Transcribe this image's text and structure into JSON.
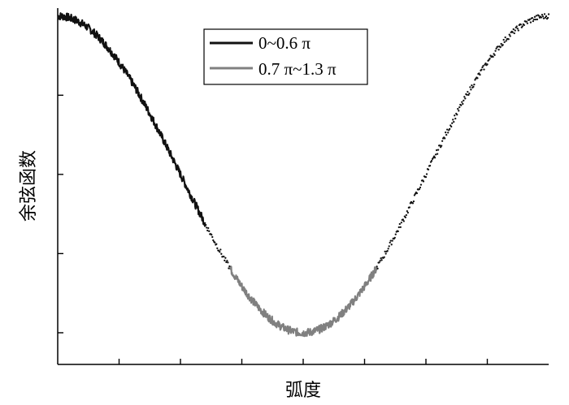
{
  "chart_data": {
    "type": "line",
    "title": "",
    "xlabel": "弧度",
    "ylabel": "余弦函数",
    "x_tick_labels": [],
    "y_tick_labels": [],
    "xlim": [
      0,
      2
    ],
    "ylim": [
      -1.2,
      1.05
    ],
    "grid": false,
    "legend": {
      "placement": "top-center"
    },
    "series": [
      {
        "name": "0~0.6 π",
        "style": "solid",
        "color": "#111111",
        "x": [
          0,
          0.1,
          0.2,
          0.3,
          0.4,
          0.5,
          0.6
        ],
        "y": [
          1.0,
          0.951,
          0.809,
          0.588,
          0.309,
          0.0,
          -0.309
        ]
      },
      {
        "name": "0.7 π~1.3 π",
        "style": "solid",
        "color": "#808080",
        "x": [
          0.7,
          0.8,
          0.9,
          1.0,
          1.1,
          1.2,
          1.3
        ],
        "y": [
          -0.588,
          -0.809,
          -0.951,
          -1.0,
          -0.951,
          -0.809,
          -0.588
        ]
      },
      {
        "name": "",
        "style": "dotted",
        "color": "#111111",
        "x": [
          0.6,
          0.65,
          0.7
        ],
        "y": [
          -0.309,
          -0.454,
          -0.588
        ]
      },
      {
        "name": "",
        "style": "dotted",
        "color": "#111111",
        "x": [
          1.3,
          1.4,
          1.5,
          1.6,
          1.7,
          1.8,
          1.9,
          2.0
        ],
        "y": [
          -0.588,
          -0.309,
          0.0,
          0.309,
          0.588,
          0.809,
          0.951,
          1.0
        ]
      }
    ]
  }
}
